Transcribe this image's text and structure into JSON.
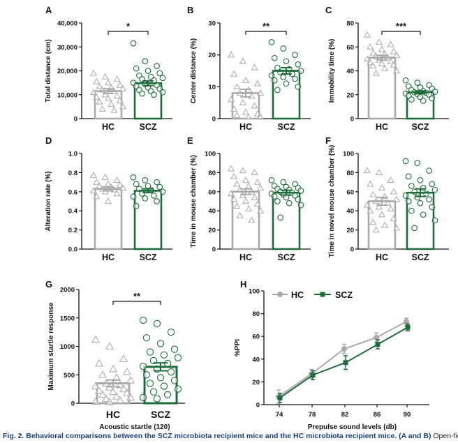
{
  "figure": {
    "caption_bold": "Fig. 2. Behavioral comparisons between the SCZ microbiota recipient mice and the HC microbiota recipient mice. (",
    "caption_a": "A",
    "caption_and": " and ",
    "caption_b": "B",
    "caption_close": ")",
    "caption_plain": " Open-field test. Compared"
  },
  "colors": {
    "hc": "#a9a9a9",
    "scz": "#1e6b3a",
    "axis": "#111111"
  },
  "chart_data": [
    {
      "type": "bar",
      "panel": "A",
      "ylabel": "Total distance (cm)",
      "yticks": [
        "0",
        "10,000",
        "20,000",
        "30,000",
        "40,000"
      ],
      "ylim": [
        0,
        40000
      ],
      "categories": [
        "HC",
        "SCZ"
      ],
      "values": [
        11500,
        14800
      ],
      "errors": [
        1000,
        1000
      ],
      "significance": "*",
      "points": [
        [
          19000,
          17500,
          16500,
          15500,
          15000,
          14000,
          13500,
          13000,
          12500,
          12000,
          11500,
          11000,
          10000,
          9500,
          9000,
          8500,
          7500,
          7000,
          6000,
          5000,
          4000,
          3500
        ],
        [
          31500,
          24000,
          22000,
          21000,
          20000,
          19000,
          18000,
          17500,
          17000,
          16500,
          16000,
          15000,
          14500,
          14000,
          13500,
          13000,
          12500,
          12000,
          11500,
          11000,
          10500,
          10000
        ]
      ]
    },
    {
      "type": "bar",
      "panel": "B",
      "ylabel": "Center distance (%)",
      "yticks": [
        "0",
        "10",
        "20",
        "30"
      ],
      "ylim": [
        0,
        30
      ],
      "categories": [
        "HC",
        "SCZ"
      ],
      "values": [
        8,
        15
      ],
      "errors": [
        1.2,
        1
      ],
      "significance": "**",
      "points": [
        [
          20,
          18,
          16,
          14,
          12,
          11,
          10,
          9,
          8,
          8,
          7,
          6,
          5,
          4,
          3,
          2,
          1.5,
          1,
          0.5,
          0.5
        ],
        [
          24,
          22,
          20,
          19,
          18,
          17,
          16,
          15.5,
          15,
          14.5,
          14,
          13.5,
          13,
          12.5,
          12,
          11,
          10,
          9
        ]
      ]
    },
    {
      "type": "bar",
      "panel": "C",
      "ylabel": "Immobility time (%)",
      "yticks": [
        "0",
        "20",
        "40",
        "60",
        "80"
      ],
      "ylim": [
        0,
        80
      ],
      "categories": [
        "HC",
        "SCZ"
      ],
      "values": [
        51,
        22
      ],
      "errors": [
        2,
        1.2
      ],
      "significance": "***",
      "points": [
        [
          70,
          64,
          62,
          60,
          58,
          56,
          55,
          54,
          53,
          52,
          51,
          50,
          49,
          48,
          47,
          46,
          45,
          44,
          42,
          40,
          38
        ],
        [
          32,
          30,
          28,
          27,
          26,
          25,
          24,
          23,
          22.5,
          22,
          21.5,
          21,
          20.5,
          20,
          19,
          18,
          17,
          16,
          15
        ]
      ]
    },
    {
      "type": "bar",
      "panel": "D",
      "ylabel": "Alteration rate (%)",
      "yticks": [
        "0.0",
        "0.2",
        "0.4",
        "0.6",
        "0.8",
        "1.0"
      ],
      "ylim": [
        0,
        1
      ],
      "categories": [
        "HC",
        "SCZ"
      ],
      "values": [
        0.63,
        0.61
      ],
      "errors": [
        0.02,
        0.02
      ],
      "significance": "",
      "points": [
        [
          0.77,
          0.75,
          0.72,
          0.7,
          0.68,
          0.67,
          0.66,
          0.65,
          0.64,
          0.63,
          0.62,
          0.61,
          0.6,
          0.58,
          0.55,
          0.5
        ],
        [
          0.75,
          0.72,
          0.7,
          0.68,
          0.66,
          0.65,
          0.63,
          0.62,
          0.6,
          0.58,
          0.56,
          0.55,
          0.53,
          0.5,
          0.45
        ]
      ]
    },
    {
      "type": "bar",
      "panel": "E",
      "ylabel": "Time in mouse chamber (%)",
      "yticks": [
        "0",
        "20",
        "40",
        "60",
        "80",
        "100"
      ],
      "ylim": [
        0,
        100
      ],
      "categories": [
        "HC",
        "SCZ"
      ],
      "values": [
        60,
        59
      ],
      "errors": [
        3,
        2.5
      ],
      "significance": "",
      "points": [
        [
          84,
          82,
          80,
          76,
          72,
          70,
          68,
          66,
          64,
          62,
          60,
          58,
          56,
          54,
          52,
          50,
          47,
          45,
          42,
          40,
          35,
          30
        ],
        [
          72,
          70,
          68,
          66,
          65,
          64,
          63,
          62,
          61,
          60,
          59,
          58,
          57,
          56,
          55,
          54,
          52,
          50,
          48,
          46,
          33
        ]
      ]
    },
    {
      "type": "bar",
      "panel": "F",
      "ylabel": "Time in novel mouse chamber (%)",
      "yticks": [
        "0",
        "20",
        "40",
        "60",
        "80",
        "100"
      ],
      "ylim": [
        0,
        100
      ],
      "categories": [
        "HC",
        "SCZ"
      ],
      "values": [
        50,
        59
      ],
      "errors": [
        4,
        4
      ],
      "significance": "",
      "points": [
        [
          82,
          80,
          72,
          68,
          64,
          60,
          57,
          55,
          52,
          50,
          48,
          46,
          44,
          42,
          40,
          36,
          32,
          28,
          25,
          22,
          20
        ],
        [
          92,
          90,
          82,
          76,
          72,
          68,
          66,
          64,
          62,
          60,
          58,
          56,
          54,
          52,
          50,
          48,
          44,
          40,
          36,
          30,
          22
        ]
      ]
    },
    {
      "type": "bar",
      "panel": "G",
      "ylabel": "Maximum startle response",
      "xlabel": "Acoustic startle (120)",
      "yticks": [
        "0",
        "500",
        "1000",
        "1500",
        "2000"
      ],
      "ylim": [
        0,
        2000
      ],
      "categories": [
        "HC",
        "SCZ"
      ],
      "values": [
        350,
        640
      ],
      "errors": [
        60,
        70
      ],
      "significance": "**",
      "points": [
        [
          1120,
          1000,
          780,
          700,
          600,
          550,
          500,
          450,
          400,
          350,
          320,
          300,
          280,
          250,
          220,
          200,
          180,
          150,
          120,
          100,
          80,
          50,
          30,
          20
        ],
        [
          1460,
          1400,
          1250,
          1150,
          1050,
          950,
          900,
          850,
          800,
          750,
          700,
          650,
          600,
          550,
          500,
          450,
          400,
          350,
          300,
          250,
          200,
          150,
          100,
          80
        ]
      ]
    },
    {
      "type": "line",
      "panel": "H",
      "ylabel": "%PPI",
      "xlabel": "Prepulse sound levels (db)",
      "x": [
        "74",
        "78",
        "82",
        "86",
        "90"
      ],
      "yticks": [
        "0",
        "20",
        "40",
        "60",
        "80",
        "100"
      ],
      "ylim": [
        0,
        100
      ],
      "legend_position": "top-left",
      "series": [
        {
          "name": "HC",
          "values": [
            7,
            27,
            49,
            59,
            73
          ],
          "errors": [
            6,
            4,
            4,
            4,
            3
          ]
        },
        {
          "name": "SCZ",
          "values": [
            6,
            26,
            37,
            53,
            68
          ],
          "errors": [
            4,
            4,
            6,
            4,
            3
          ]
        }
      ]
    }
  ]
}
